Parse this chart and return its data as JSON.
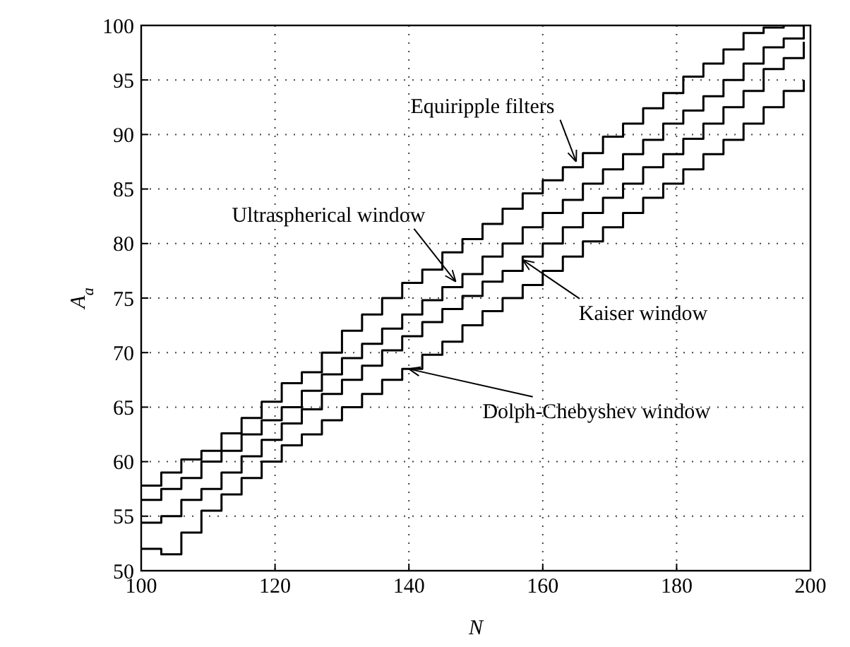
{
  "chart_data": {
    "type": "step",
    "xlabel": "N",
    "ylabel": "A$_{a}$",
    "xlim": [
      100,
      200
    ],
    "ylim": [
      50,
      100
    ],
    "xticks": [
      100,
      120,
      140,
      160,
      180,
      200
    ],
    "yticks": [
      50,
      55,
      60,
      65,
      70,
      75,
      80,
      85,
      90,
      95,
      100
    ],
    "grid": true,
    "line_style": "solid",
    "marker": "none",
    "x": [
      100,
      103,
      106,
      109,
      112,
      115,
      118,
      121,
      124,
      127,
      130,
      133,
      136,
      139,
      142,
      145,
      148,
      151,
      154,
      157,
      160,
      163,
      166,
      169,
      172,
      175,
      178,
      181,
      184,
      187,
      190,
      193,
      196,
      199
    ],
    "series": [
      {
        "color": "#000000",
        "values": [
          57.8,
          59,
          60.2,
          61,
          62.6,
          64,
          65.5,
          67.2,
          68.2,
          70,
          72,
          73.5,
          75,
          76.4,
          77.6,
          79.2,
          80.4,
          81.8,
          83.2,
          84.6,
          85.8,
          87,
          88.3,
          89.8,
          91,
          92.4,
          93.8,
          95.3,
          96.5,
          97.8,
          99.3,
          99.8,
          100,
          100
        ]
      },
      {
        "color": "#000000",
        "values": [
          56.5,
          57.5,
          58.5,
          60,
          61,
          62.5,
          63.8,
          65,
          66.5,
          68,
          69.5,
          70.8,
          72.2,
          73.5,
          74.8,
          76,
          77.2,
          78.8,
          80,
          81.5,
          82.8,
          84,
          85.5,
          86.8,
          88.2,
          89.5,
          91,
          92.2,
          93.5,
          95,
          96.5,
          98,
          98.8,
          100
        ]
      },
      {
        "color": "#000000",
        "values": [
          54.4,
          55,
          56.5,
          57.5,
          59,
          60.5,
          62,
          63.5,
          64.8,
          66.2,
          67.5,
          68.8,
          70.2,
          71.5,
          72.8,
          74,
          75.2,
          76.5,
          77.5,
          78.8,
          80,
          81.5,
          82.8,
          84.2,
          85.5,
          87,
          88.2,
          89.6,
          91,
          92.5,
          94,
          96,
          97,
          98.5
        ]
      },
      {
        "color": "#000000",
        "values": [
          52,
          51.5,
          53.5,
          55.5,
          57,
          58.5,
          60,
          61.5,
          62.5,
          63.8,
          65,
          66.2,
          67.5,
          68.5,
          69.8,
          71,
          72.5,
          73.8,
          75,
          76.2,
          77.5,
          78.8,
          80.2,
          81.5,
          82.8,
          84.2,
          85.5,
          86.8,
          88.2,
          89.5,
          91,
          92.5,
          94,
          95
        ]
      }
    ],
    "annotations": [
      {
        "text": "Equiripple filters",
        "x": 165,
        "y": 87.5
      },
      {
        "text": "Ultraspherical window",
        "x": 147,
        "y": 76.5
      },
      {
        "text": "Kaiser window",
        "x": 157,
        "y": 78.5
      },
      {
        "text": "Dolph-Chebyshev window",
        "x": 140,
        "y": 68.5
      }
    ]
  }
}
